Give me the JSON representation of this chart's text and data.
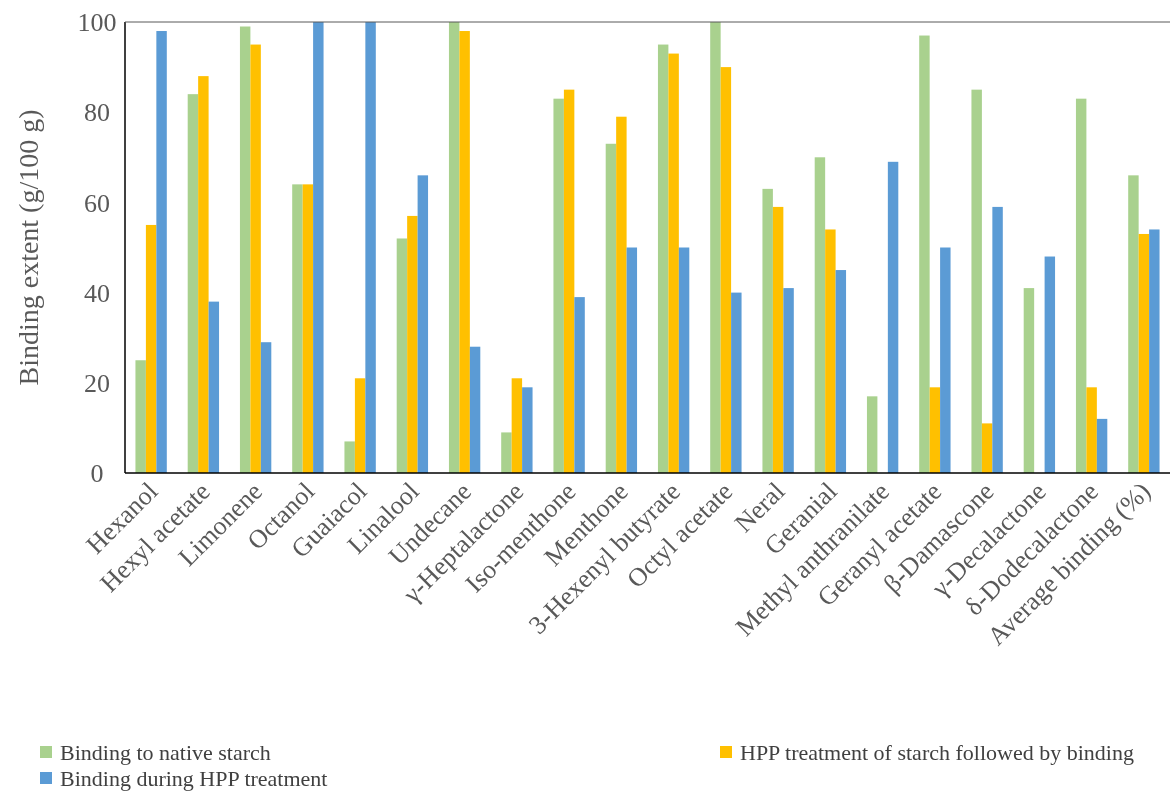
{
  "chart_data": {
    "type": "bar",
    "ylabel": "Binding extent (g/100 g)",
    "categories": [
      "Hexanol",
      "Hexyl acetate",
      "Limonene",
      "Octanol",
      "Guaiacol",
      "Linalool",
      "Undecane",
      "γ-Heptalactone",
      "Iso-menthone",
      "Menthone",
      "3-Hexenyl butyrate",
      "Octyl acetate",
      "Neral",
      "Geranial",
      "Methyl anthranilate",
      "Geranyl acetate",
      "β-Damascone",
      "γ-Decalactone",
      "δ-Dodecalactone",
      "Average binding (%)"
    ],
    "series": [
      {
        "name": "Binding to native starch",
        "color": "#a9d18e",
        "values": [
          25,
          84,
          99,
          64,
          7,
          52,
          100,
          9,
          83,
          73,
          95,
          100,
          63,
          70,
          17,
          97,
          85,
          41,
          83,
          66
        ]
      },
      {
        "name": "HPP treatment of starch followed by binding",
        "color": "#ffc000",
        "values": [
          55,
          88,
          95,
          64,
          21,
          57,
          98,
          21,
          85,
          79,
          93,
          90,
          59,
          54,
          null,
          19,
          11,
          null,
          19,
          53
        ]
      },
      {
        "name": "Binding during HPP treatment",
        "color": "#5b9bd5",
        "values": [
          98,
          38,
          29,
          100,
          100,
          66,
          28,
          19,
          39,
          50,
          50,
          40,
          41,
          45,
          69,
          50,
          59,
          48,
          12,
          54
        ]
      }
    ],
    "ylim": [
      0,
      100
    ],
    "yticks": [
      0,
      20,
      40,
      60,
      80,
      100
    ],
    "grid": false,
    "legend": "bottom"
  }
}
